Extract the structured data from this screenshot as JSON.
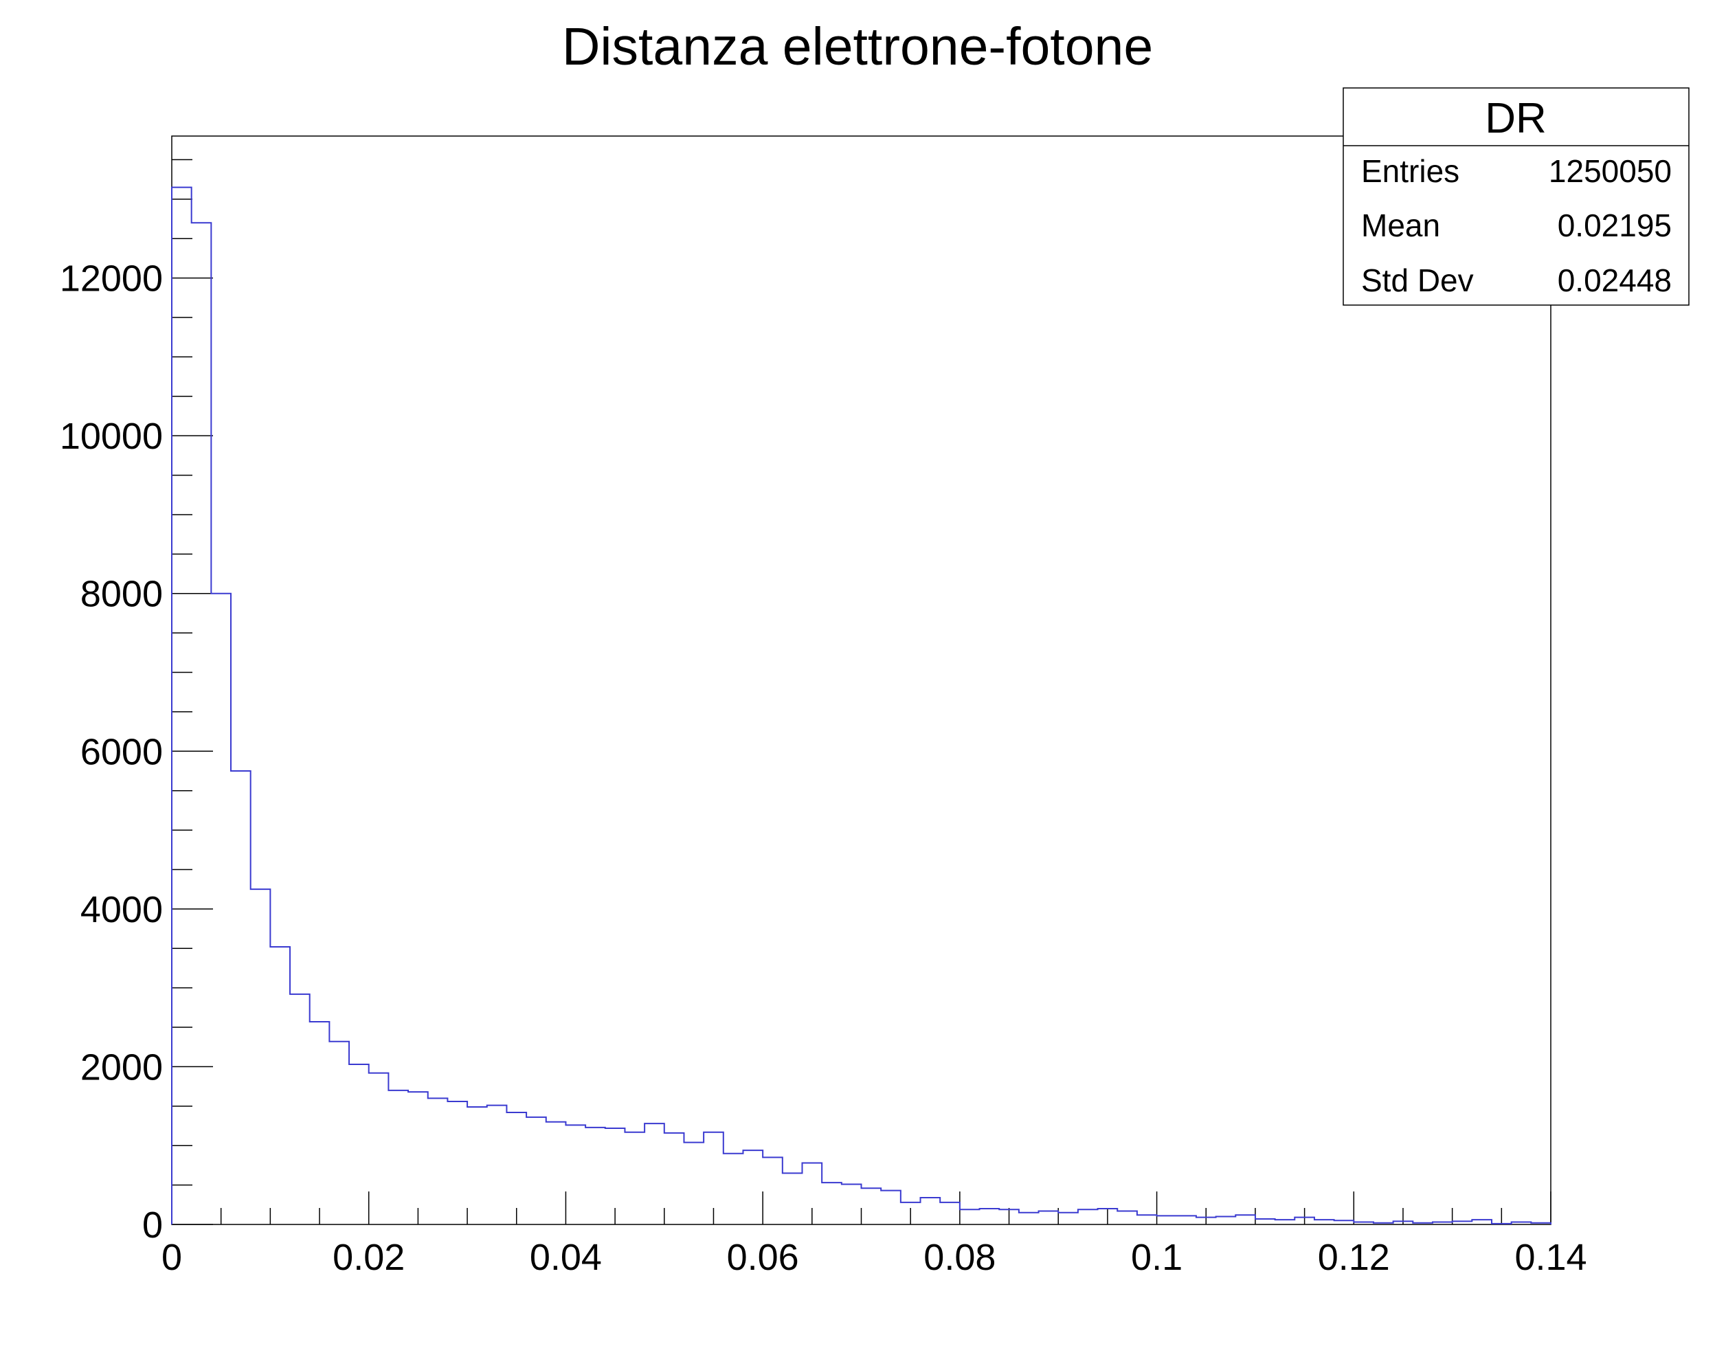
{
  "chart_data": {
    "type": "histogram",
    "title": "Distanza elettrone-fotone",
    "xlabel": "",
    "ylabel": "",
    "xlim": [
      0,
      0.14
    ],
    "ylim": [
      0,
      13800
    ],
    "bin_width": 0.002,
    "x_tick_labels": [
      "0",
      "0.02",
      "0.04",
      "0.06",
      "0.08",
      "0.1",
      "0.12",
      "0.14"
    ],
    "x_ticks": [
      0,
      0.02,
      0.04,
      0.06,
      0.08,
      0.1,
      0.12,
      0.14
    ],
    "y_tick_labels": [
      "0",
      "2000",
      "4000",
      "6000",
      "8000",
      "10000",
      "12000"
    ],
    "y_ticks": [
      0,
      2000,
      4000,
      6000,
      8000,
      10000,
      12000
    ],
    "line_color": "#3a3ad0",
    "values": [
      13150,
      12700,
      8000,
      5750,
      4250,
      3520,
      2920,
      2570,
      2320,
      2030,
      1920,
      1700,
      1680,
      1600,
      1560,
      1490,
      1510,
      1420,
      1360,
      1300,
      1260,
      1230,
      1220,
      1170,
      1280,
      1160,
      1040,
      1170,
      900,
      940,
      850,
      650,
      780,
      530,
      510,
      460,
      430,
      280,
      340,
      280,
      190,
      200,
      190,
      150,
      170,
      150,
      190,
      200,
      170,
      120,
      110,
      110,
      90,
      100,
      120,
      70,
      60,
      90,
      60,
      50,
      30,
      20,
      40,
      20,
      30,
      40,
      60,
      10,
      30,
      20
    ]
  },
  "stats_box": {
    "title": "DR",
    "rows": [
      {
        "label": "Entries",
        "value": "1250050"
      },
      {
        "label": "Mean",
        "value": "0.02195"
      },
      {
        "label": "Std Dev",
        "value": "0.02448"
      }
    ]
  }
}
